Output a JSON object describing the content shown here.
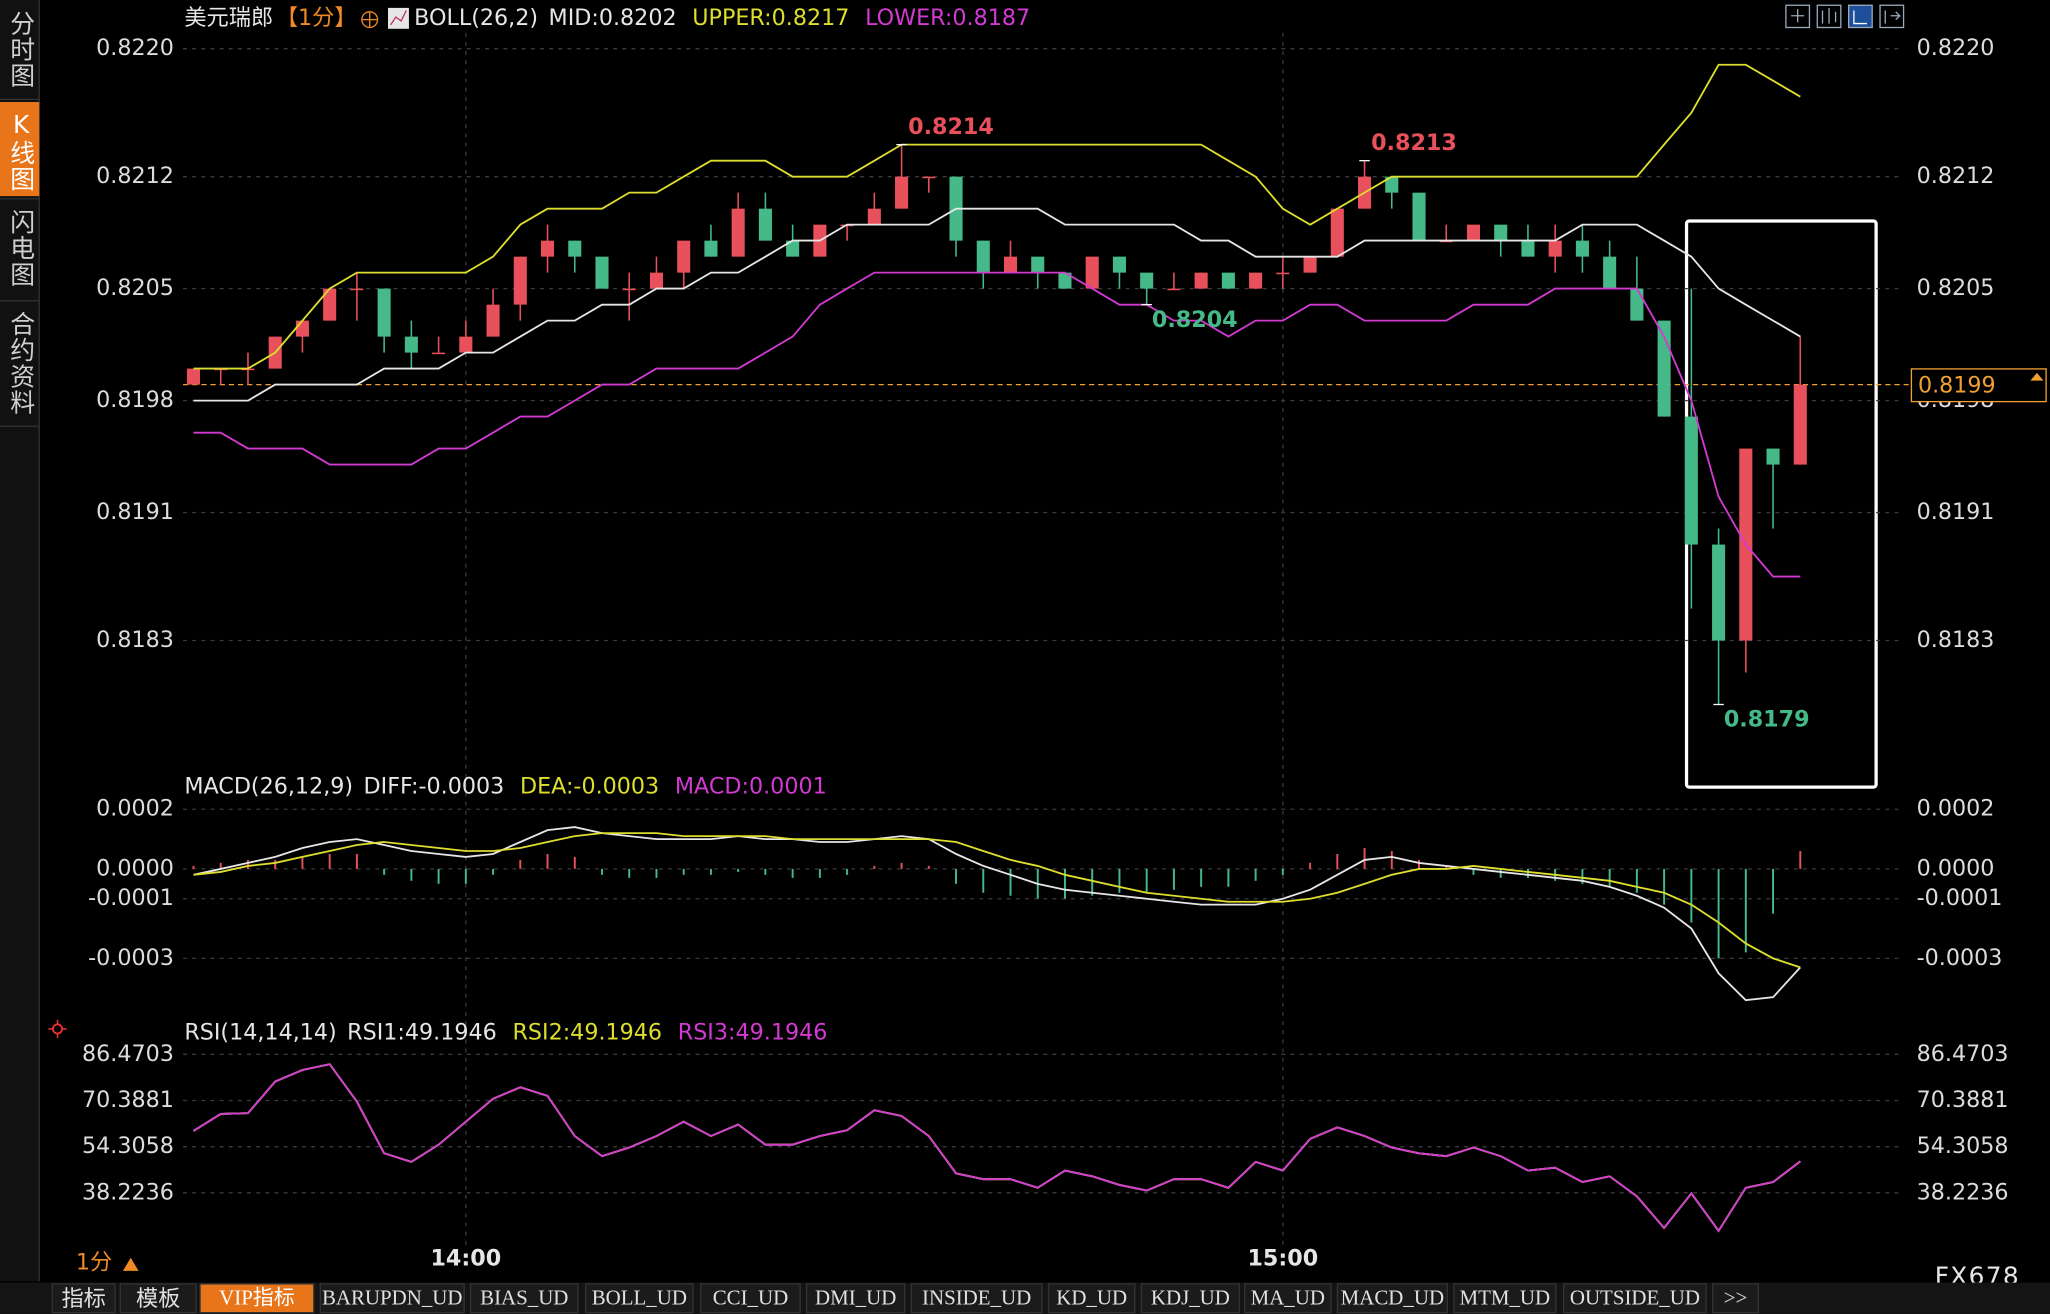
{
  "sidebar": {
    "tabs": [
      "分时图",
      "K线图",
      "闪电图",
      "合约资料"
    ]
  },
  "footer": {
    "period": "1分",
    "brand": "FX678"
  },
  "toolbar": {
    "items": [
      "指标",
      "模板",
      "VIP指标",
      "BARUPDN_UD",
      "BIAS_UD",
      "BOLL_UD",
      "CCI_UD",
      "DMI_UD",
      "INSIDE_UD",
      "KD_UD",
      "KDJ_UD",
      "MA_UD",
      "MACD_UD",
      "MTM_UD",
      "OUTSIDE_UD",
      ">>"
    ]
  },
  "chart_data": [
    {
      "type": "candlestick",
      "title": "美元瑞郎",
      "period": "【1分】",
      "indicator": "BOLL(26,2)",
      "up_color": "#e8505b",
      "down_color": "#45b987",
      "categories": [
        null,
        null,
        null,
        null,
        null,
        null,
        null,
        null,
        null,
        null,
        "14:00",
        null,
        null,
        null,
        null,
        null,
        null,
        null,
        null,
        null,
        null,
        null,
        null,
        null,
        null,
        null,
        null,
        null,
        null,
        null,
        null,
        null,
        null,
        null,
        null,
        null,
        null,
        null,
        null,
        null,
        "15:00",
        null,
        null,
        null,
        null,
        null,
        null,
        null,
        null,
        null,
        null,
        null,
        null,
        null,
        null,
        null,
        null,
        null,
        null,
        null
      ],
      "open": [
        0.8199,
        0.82,
        0.82,
        0.82,
        0.8202,
        0.8203,
        0.8205,
        0.8205,
        0.8202,
        0.8201,
        0.8201,
        0.8202,
        0.8204,
        0.8207,
        0.8208,
        0.8207,
        0.8205,
        0.8205,
        0.8206,
        0.8208,
        0.8207,
        0.821,
        0.8208,
        0.8207,
        0.8209,
        0.8209,
        0.821,
        0.8212,
        0.8212,
        0.8208,
        0.8206,
        0.8207,
        0.8206,
        0.8205,
        0.8207,
        0.8206,
        0.8205,
        0.8205,
        0.8206,
        0.8205,
        0.8206,
        0.8206,
        0.8207,
        0.821,
        0.8212,
        0.8211,
        0.8208,
        0.8208,
        0.8209,
        0.8208,
        0.8207,
        0.8208,
        0.8207,
        0.8205,
        0.8203,
        0.8197,
        0.8189,
        0.8183,
        0.8195,
        0.8194
      ],
      "high": [
        0.82,
        0.82,
        0.8201,
        0.8202,
        0.8203,
        0.8205,
        0.8206,
        0.8205,
        0.8203,
        0.8202,
        0.8203,
        0.8205,
        0.8207,
        0.8209,
        0.8208,
        0.8207,
        0.8206,
        0.8207,
        0.8208,
        0.8209,
        0.8211,
        0.8211,
        0.8209,
        0.8209,
        0.8209,
        0.8211,
        0.8214,
        0.8212,
        0.8212,
        0.8208,
        0.8208,
        0.8207,
        0.8206,
        0.8207,
        0.8207,
        0.8206,
        0.8206,
        0.8206,
        0.8206,
        0.8206,
        0.8207,
        0.8207,
        0.821,
        0.8213,
        0.8212,
        0.8211,
        0.8209,
        0.8209,
        0.8209,
        0.8209,
        0.8209,
        0.8209,
        0.8208,
        0.8207,
        0.8203,
        0.8205,
        0.819,
        0.8195,
        0.8195,
        0.8202
      ],
      "low": [
        0.8199,
        0.8199,
        0.8199,
        0.82,
        0.8201,
        0.8203,
        0.8203,
        0.8201,
        0.82,
        0.8201,
        0.8201,
        0.8202,
        0.8203,
        0.8206,
        0.8206,
        0.8205,
        0.8203,
        0.8205,
        0.8205,
        0.8207,
        0.8207,
        0.8208,
        0.8207,
        0.8207,
        0.8208,
        0.8209,
        0.821,
        0.8211,
        0.8207,
        0.8205,
        0.8206,
        0.8205,
        0.8205,
        0.8205,
        0.8205,
        0.8204,
        0.8205,
        0.8205,
        0.8205,
        0.8205,
        0.8205,
        0.8206,
        0.8207,
        0.821,
        0.821,
        0.8208,
        0.8208,
        0.8208,
        0.8207,
        0.8207,
        0.8206,
        0.8206,
        0.8205,
        0.8203,
        0.8197,
        0.8185,
        0.8179,
        0.8181,
        0.819,
        0.8194
      ],
      "close": [
        0.82,
        0.82,
        0.82,
        0.8202,
        0.8203,
        0.8205,
        0.8205,
        0.8202,
        0.8201,
        0.8201,
        0.8202,
        0.8204,
        0.8207,
        0.8208,
        0.8207,
        0.8205,
        0.8205,
        0.8206,
        0.8208,
        0.8207,
        0.821,
        0.8208,
        0.8207,
        0.8209,
        0.8209,
        0.821,
        0.8212,
        0.8212,
        0.8208,
        0.8206,
        0.8207,
        0.8206,
        0.8205,
        0.8207,
        0.8206,
        0.8205,
        0.8205,
        0.8206,
        0.8205,
        0.8206,
        0.8206,
        0.8207,
        0.821,
        0.8212,
        0.8211,
        0.8208,
        0.8208,
        0.8209,
        0.8208,
        0.8207,
        0.8208,
        0.8207,
        0.8205,
        0.8203,
        0.8197,
        0.8189,
        0.8183,
        0.8195,
        0.8194,
        0.8199
      ],
      "series": [
        {
          "name": "MID:0.8202",
          "color": "#e6e6e6",
          "values": [
            0.8198,
            0.8198,
            0.8198,
            0.8199,
            0.8199,
            0.8199,
            0.8199,
            0.82,
            0.82,
            0.82,
            0.8201,
            0.8201,
            0.8202,
            0.8203,
            0.8203,
            0.8204,
            0.8204,
            0.8205,
            0.8205,
            0.8206,
            0.8206,
            0.8207,
            0.8208,
            0.8208,
            0.8209,
            0.8209,
            0.8209,
            0.8209,
            0.821,
            0.821,
            0.821,
            0.821,
            0.8209,
            0.8209,
            0.8209,
            0.8209,
            0.8209,
            0.8208,
            0.8208,
            0.8207,
            0.8207,
            0.8207,
            0.8207,
            0.8208,
            0.8208,
            0.8208,
            0.8208,
            0.8208,
            0.8208,
            0.8208,
            0.8208,
            0.8209,
            0.8209,
            0.8209,
            0.8208,
            0.8207,
            0.8205,
            0.8204,
            0.8203,
            0.8202
          ]
        },
        {
          "name": "UPPER:0.8217",
          "color": "#dede2e",
          "values": [
            0.82,
            0.82,
            0.82,
            0.8201,
            0.8203,
            0.8205,
            0.8206,
            0.8206,
            0.8206,
            0.8206,
            0.8206,
            0.8207,
            0.8209,
            0.821,
            0.821,
            0.821,
            0.8211,
            0.8211,
            0.8212,
            0.8213,
            0.8213,
            0.8213,
            0.8212,
            0.8212,
            0.8212,
            0.8213,
            0.8214,
            0.8214,
            0.8214,
            0.8214,
            0.8214,
            0.8214,
            0.8214,
            0.8214,
            0.8214,
            0.8214,
            0.8214,
            0.8214,
            0.8213,
            0.8212,
            0.821,
            0.8209,
            0.821,
            0.8211,
            0.8212,
            0.8212,
            0.8212,
            0.8212,
            0.8212,
            0.8212,
            0.8212,
            0.8212,
            0.8212,
            0.8212,
            0.8214,
            0.8216,
            0.8219,
            0.8219,
            0.8218,
            0.8217
          ]
        },
        {
          "name": "LOWER:0.8187",
          "color": "#d23ad2",
          "values": [
            0.8196,
            0.8196,
            0.8195,
            0.8195,
            0.8195,
            0.8194,
            0.8194,
            0.8194,
            0.8194,
            0.8195,
            0.8195,
            0.8196,
            0.8197,
            0.8197,
            0.8198,
            0.8199,
            0.8199,
            0.82,
            0.82,
            0.82,
            0.82,
            0.8201,
            0.8202,
            0.8204,
            0.8205,
            0.8206,
            0.8206,
            0.8206,
            0.8206,
            0.8206,
            0.8206,
            0.8206,
            0.8206,
            0.8205,
            0.8204,
            0.8204,
            0.8203,
            0.8203,
            0.8202,
            0.8203,
            0.8203,
            0.8204,
            0.8204,
            0.8203,
            0.8203,
            0.8203,
            0.8203,
            0.8204,
            0.8204,
            0.8204,
            0.8205,
            0.8205,
            0.8205,
            0.8205,
            0.8202,
            0.8198,
            0.8192,
            0.8189,
            0.8187,
            0.8187
          ]
        }
      ],
      "high_marks": [
        0.8214,
        0.8213
      ],
      "low_marks": [
        0.8204,
        0.8179
      ],
      "last_price": 0.8199,
      "last_price_color": "#f0a030",
      "ylim": [
        0.8174,
        0.8221
      ],
      "yticks": [
        {
          "value": 0.822,
          "label": "0.8220"
        },
        {
          "value": 0.8212,
          "label": "0.8212"
        },
        {
          "value": 0.8205,
          "label": "0.8205"
        },
        {
          "value": 0.8198,
          "label": "0.8198"
        },
        {
          "value": 0.8191,
          "label": "0.8191"
        },
        {
          "value": 0.8183,
          "label": "0.8183"
        }
      ],
      "grid": true
    },
    {
      "type": "macd",
      "title": "MACD(26,12,9)",
      "up_color": "#e8505b",
      "down_color": "#45b987",
      "series": [
        {
          "name": "DIFF:-0.0003",
          "color": "#e6e6e6",
          "values": [
            -2e-05,
            0,
            2e-05,
            4e-05,
            7e-05,
            9e-05,
            0.0001,
            8e-05,
            6e-05,
            5e-05,
            4e-05,
            5e-05,
            9e-05,
            0.00013,
            0.00014,
            0.00012,
            0.00011,
            0.0001,
            0.0001,
            0.0001,
            0.00011,
            0.0001,
            0.0001,
            9e-05,
            9e-05,
            0.0001,
            0.00011,
            0.0001,
            5e-05,
            1e-05,
            -2e-05,
            -5e-05,
            -7e-05,
            -8e-05,
            -9e-05,
            -0.0001,
            -0.00011,
            -0.00012,
            -0.00012,
            -0.00012,
            -0.0001,
            -7e-05,
            -2e-05,
            3e-05,
            4e-05,
            2e-05,
            1e-05,
            0,
            -1e-05,
            -2e-05,
            -3e-05,
            -4e-05,
            -6e-05,
            -9e-05,
            -0.00013,
            -0.0002,
            -0.00035,
            -0.00044,
            -0.00043,
            -0.00033
          ]
        },
        {
          "name": "DEA:-0.0003",
          "color": "#dede2e",
          "values": [
            -2e-05,
            -1e-05,
            1e-05,
            2e-05,
            4e-05,
            6e-05,
            8e-05,
            9e-05,
            8e-05,
            7e-05,
            6e-05,
            6e-05,
            7e-05,
            9e-05,
            0.00011,
            0.00012,
            0.00012,
            0.00012,
            0.00011,
            0.00011,
            0.00011,
            0.00011,
            0.0001,
            0.0001,
            0.0001,
            0.0001,
            0.0001,
            0.0001,
            9e-05,
            6e-05,
            3e-05,
            1e-05,
            -2e-05,
            -4e-05,
            -6e-05,
            -8e-05,
            -9e-05,
            -0.0001,
            -0.00011,
            -0.00011,
            -0.00011,
            -0.0001,
            -8e-05,
            -5e-05,
            -2e-05,
            0,
            0,
            1e-05,
            0,
            -1e-05,
            -2e-05,
            -3e-05,
            -4e-05,
            -6e-05,
            -8e-05,
            -0.00012,
            -0.00018,
            -0.00025,
            -0.0003,
            -0.00033
          ]
        },
        {
          "name": "MACD:0.0001",
          "color": "#d23ad2",
          "type": "bar",
          "values": [
            1e-05,
            2e-05,
            3e-05,
            3e-05,
            4e-05,
            5e-05,
            5e-05,
            -2e-05,
            -4e-05,
            -5e-05,
            -5e-05,
            -2e-05,
            3e-05,
            5e-05,
            4e-05,
            -2e-05,
            -3e-05,
            -3e-05,
            -2e-05,
            -2e-05,
            -1e-05,
            -2e-05,
            -3e-05,
            -3e-05,
            -2e-05,
            1e-05,
            2e-05,
            1e-05,
            -5e-05,
            -8e-05,
            -9e-05,
            -0.0001,
            -0.0001,
            -9e-05,
            -8e-05,
            -8e-05,
            -7e-05,
            -6e-05,
            -6e-05,
            -4e-05,
            -2e-05,
            2e-05,
            5e-05,
            7e-05,
            6e-05,
            3e-05,
            1e-05,
            -2e-05,
            -3e-05,
            -3e-05,
            -4e-05,
            -5e-05,
            -6e-05,
            -8e-05,
            -0.00012,
            -0.00018,
            -0.0003,
            -0.00028,
            -0.00015,
            6e-05
          ]
        }
      ],
      "ylim": [
        -0.000484,
        0.000283
      ],
      "yticks": [
        {
          "value": 0.0002,
          "label": "0.0002"
        },
        {
          "value": 0,
          "label": "0.0000"
        },
        {
          "value": -0.0001,
          "label": "-0.0001"
        },
        {
          "value": -0.0003,
          "label": "-0.0003"
        }
      ],
      "grid": true
    },
    {
      "type": "rsi",
      "title": "RSI(14,14,14)",
      "series": [
        {
          "name": "RSI1:49.1946",
          "color": "#e6e6e6",
          "values": [
            59.8,
            65.7,
            66,
            77,
            81,
            83,
            70,
            52,
            49,
            55,
            63,
            71,
            75,
            72,
            58,
            51,
            54,
            58,
            63,
            58,
            62,
            55,
            55,
            58,
            60,
            67,
            65,
            58,
            45,
            43,
            43,
            40,
            46,
            44,
            41,
            39,
            43,
            43,
            40,
            49,
            46,
            57,
            61,
            58,
            54,
            52,
            51,
            54,
            51,
            46,
            47,
            42,
            44,
            37,
            26,
            38,
            25,
            40,
            42,
            49.1946
          ]
        },
        {
          "name": "RSI2:49.1946",
          "color": "#dede2e",
          "values": [
            59.8,
            65.7,
            66,
            77,
            81,
            83,
            70,
            52,
            49,
            55,
            63,
            71,
            75,
            72,
            58,
            51,
            54,
            58,
            63,
            58,
            62,
            55,
            55,
            58,
            60,
            67,
            65,
            58,
            45,
            43,
            43,
            40,
            46,
            44,
            41,
            39,
            43,
            43,
            40,
            49,
            46,
            57,
            61,
            58,
            54,
            52,
            51,
            54,
            51,
            46,
            47,
            42,
            44,
            37,
            26,
            38,
            25,
            40,
            42,
            49.1946
          ]
        },
        {
          "name": "RSI3:49.1946",
          "color": "#d23ad2",
          "values": [
            59.8,
            65.7,
            66,
            77,
            81,
            83,
            70,
            52,
            49,
            55,
            63,
            71,
            75,
            72,
            58,
            51,
            54,
            58,
            63,
            58,
            62,
            55,
            55,
            58,
            60,
            67,
            65,
            58,
            45,
            43,
            43,
            40,
            46,
            44,
            41,
            39,
            43,
            43,
            40,
            49,
            46,
            57,
            61,
            58,
            54,
            52,
            51,
            54,
            51,
            46,
            47,
            42,
            44,
            37,
            26,
            38,
            25,
            40,
            42,
            49.1946
          ]
        }
      ],
      "ylim": [
        18.8,
        98.5
      ],
      "yticks": [
        86.4703,
        70.3881,
        54.3058,
        38.2236
      ],
      "grid": true
    }
  ]
}
